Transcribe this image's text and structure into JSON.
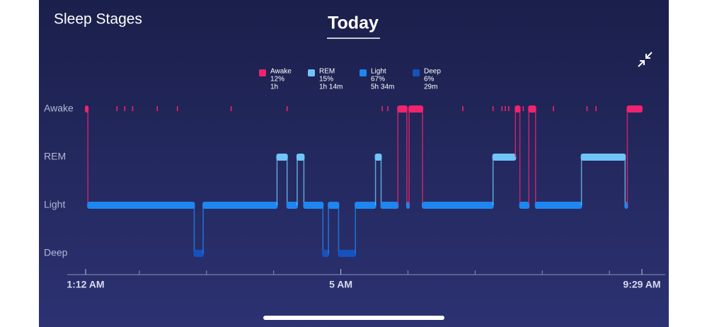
{
  "chart_data": {
    "type": "hypnogram",
    "title": "Sleep Stages",
    "tab": "Today",
    "y_categories": [
      "Awake",
      "REM",
      "Light",
      "Deep"
    ],
    "series": [
      {
        "name": "Awake",
        "color": "#f0236e",
        "percent": "12%",
        "duration": "1h"
      },
      {
        "name": "REM",
        "color": "#6fc4f8",
        "percent": "15%",
        "duration": "1h 14m"
      },
      {
        "name": "Light",
        "color": "#1e86f0",
        "percent": "67%",
        "duration": "5h 34m"
      },
      {
        "name": "Deep",
        "color": "#1552bd",
        "percent": "6%",
        "duration": "29m"
      }
    ],
    "x": [
      0,
      2,
      97,
      105,
      171,
      180,
      189,
      195,
      212,
      217,
      226,
      241,
      259,
      264,
      279,
      287,
      289,
      301,
      364,
      384,
      388,
      396,
      402,
      443,
      482,
      484
    ],
    "values": [
      0,
      2,
      3,
      2,
      1,
      2,
      1,
      2,
      3,
      2,
      3,
      2,
      1,
      2,
      0,
      2,
      0,
      2,
      1,
      0,
      2,
      0,
      2,
      1,
      2,
      0
    ],
    "brief_awake": [
      28,
      35,
      42,
      64,
      82,
      130,
      180,
      265,
      270,
      337,
      364,
      372,
      375,
      378,
      391,
      418,
      448,
      456
    ],
    "xlim": [
      0,
      497
    ],
    "xticks": [
      {
        "value": 0,
        "label": "1:12 AM"
      },
      {
        "value": 228,
        "label": "5 AM"
      },
      {
        "value": 497,
        "label": "9:29 AM"
      }
    ],
    "minor_xticks": [
      48,
      108,
      168,
      288,
      348,
      408,
      468
    ]
  }
}
